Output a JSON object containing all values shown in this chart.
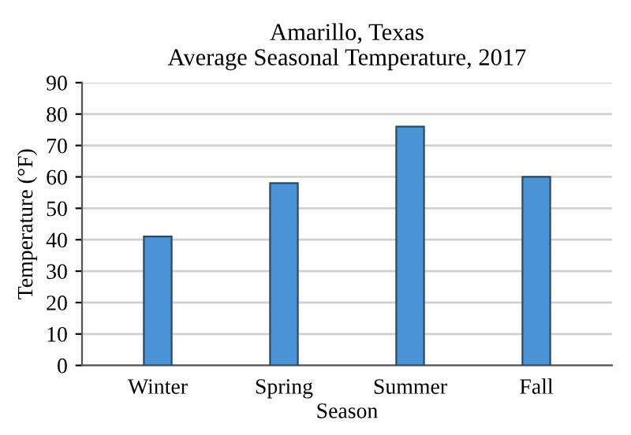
{
  "chart_data": {
    "type": "bar",
    "title": "Amarillo, Texas\nAverage Seasonal Temperature, 2017",
    "xlabel": "Season",
    "ylabel": "Temperature (°F)",
    "categories": [
      "Winter",
      "Spring",
      "Summer",
      "Fall"
    ],
    "values": [
      41,
      58,
      76,
      60
    ],
    "color": "#4a93d4",
    "ylim": [
      0,
      90
    ],
    "yticks": [
      0,
      10,
      20,
      30,
      40,
      50,
      60,
      70,
      80,
      90
    ],
    "grid": "y",
    "legend": false
  }
}
